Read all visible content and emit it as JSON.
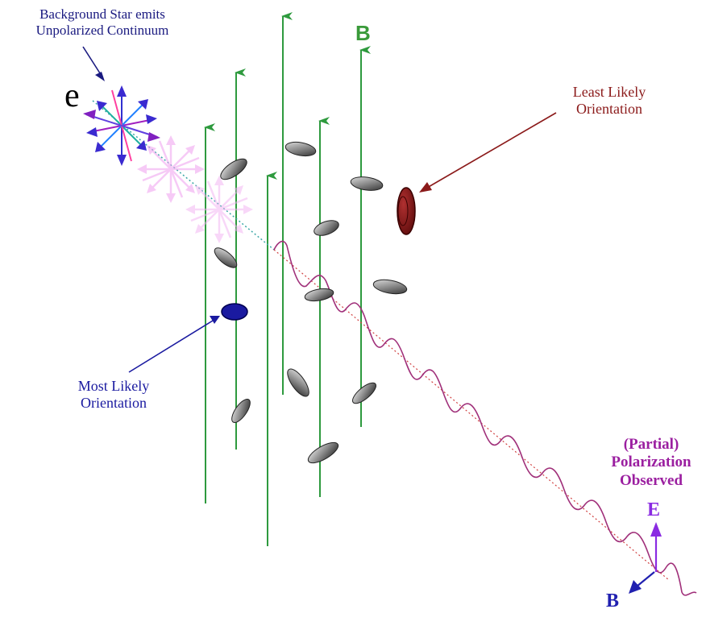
{
  "labels": {
    "star_line1": "Background Star emits",
    "star_line2": "Unpolarized Continuum",
    "electron": "e",
    "field_B_top": "B",
    "least_line1": "Least Likely",
    "least_line2": "Orientation",
    "most_line1": "Most Likely",
    "most_line2": "Orientation",
    "observed_line1": "(Partial)",
    "observed_line2": "Polarization",
    "observed_line3": "Observed",
    "vector_E": "E",
    "vector_B": "B"
  },
  "colors": {
    "field_lines": "#2e9a3e",
    "field_label": "#3a9a3a",
    "least_likely": "#8b1a1a",
    "most_likely": "#1a1aa0",
    "wave": "#a0307a",
    "observed": "#9b1fa0",
    "vector_E": "#8a2be2",
    "vector_B": "#2020b0",
    "star_label": "#1a1a80",
    "grains": "#5a5a5a"
  }
}
